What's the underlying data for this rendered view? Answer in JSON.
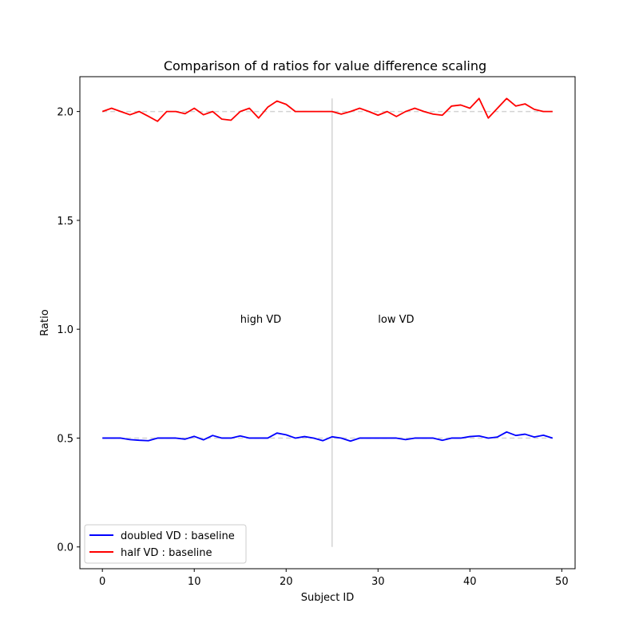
{
  "chart_data": {
    "type": "line",
    "title": "Comparison of d ratios for value difference scaling",
    "xlabel": "Subject ID",
    "ylabel": "Ratio",
    "xlim": [
      -2.45,
      51.45
    ],
    "ylim": [
      -0.1,
      2.16
    ],
    "xticks": [
      0,
      10,
      20,
      30,
      40,
      50
    ],
    "xtick_labels": [
      "0",
      "10",
      "20",
      "30",
      "40",
      "50"
    ],
    "yticks": [
      0.0,
      0.5,
      1.0,
      1.5,
      2.0
    ],
    "ytick_labels": [
      "0.0",
      "0.5",
      "1.0",
      "1.5",
      "2.0"
    ],
    "grid": false,
    "legend_position": "lower-left",
    "x": [
      0,
      1,
      2,
      3,
      4,
      5,
      6,
      7,
      8,
      9,
      10,
      11,
      12,
      13,
      14,
      15,
      16,
      17,
      18,
      19,
      20,
      21,
      22,
      23,
      24,
      25,
      26,
      27,
      28,
      29,
      30,
      31,
      32,
      33,
      34,
      35,
      36,
      37,
      38,
      39,
      40,
      41,
      42,
      43,
      44,
      45,
      46,
      47,
      48,
      49
    ],
    "series": [
      {
        "name": "doubled VD : baseline",
        "color": "#0000ff",
        "values": [
          0.5,
          0.5,
          0.5,
          0.493,
          0.49,
          0.488,
          0.5,
          0.5,
          0.5,
          0.495,
          0.508,
          0.492,
          0.512,
          0.5,
          0.5,
          0.51,
          0.5,
          0.5,
          0.5,
          0.523,
          0.515,
          0.5,
          0.507,
          0.5,
          0.488,
          0.506,
          0.5,
          0.486,
          0.5,
          0.5,
          0.5,
          0.5,
          0.5,
          0.493,
          0.5,
          0.5,
          0.5,
          0.49,
          0.5,
          0.5,
          0.507,
          0.51,
          0.5,
          0.505,
          0.528,
          0.512,
          0.518,
          0.505,
          0.513,
          0.5
        ]
      },
      {
        "name": "half VD : baseline",
        "color": "#ff0000",
        "values": [
          2.0,
          2.015,
          2.0,
          1.985,
          2.0,
          1.978,
          1.955,
          2.0,
          2.0,
          1.99,
          2.015,
          1.985,
          2.0,
          1.965,
          1.96,
          2.0,
          2.015,
          1.97,
          2.02,
          2.048,
          2.033,
          2.0,
          2.0,
          2.0,
          2.0,
          2.0,
          1.988,
          2.0,
          2.015,
          2.0,
          1.983,
          2.0,
          1.977,
          2.0,
          2.015,
          2.0,
          1.988,
          1.983,
          2.025,
          2.03,
          2.015,
          2.06,
          1.97,
          2.015,
          2.06,
          2.025,
          2.035,
          2.01,
          2.0,
          2.0
        ]
      }
    ],
    "reference_lines": [
      {
        "y": 2.0,
        "x_range": [
          0,
          49
        ],
        "style": "dashed",
        "color": "#d3d3d3"
      },
      {
        "y": 0.5,
        "x_range": [
          0,
          49
        ],
        "style": "dashed",
        "color": "#d3d3d3"
      }
    ],
    "divider": {
      "x": 25,
      "y_range": [
        0.0,
        2.06
      ],
      "color": "#d3d3d3"
    },
    "annotations": [
      {
        "text": "high VD",
        "x": 15,
        "y": 1.03
      },
      {
        "text": "low VD",
        "x": 30,
        "y": 1.03
      }
    ]
  }
}
